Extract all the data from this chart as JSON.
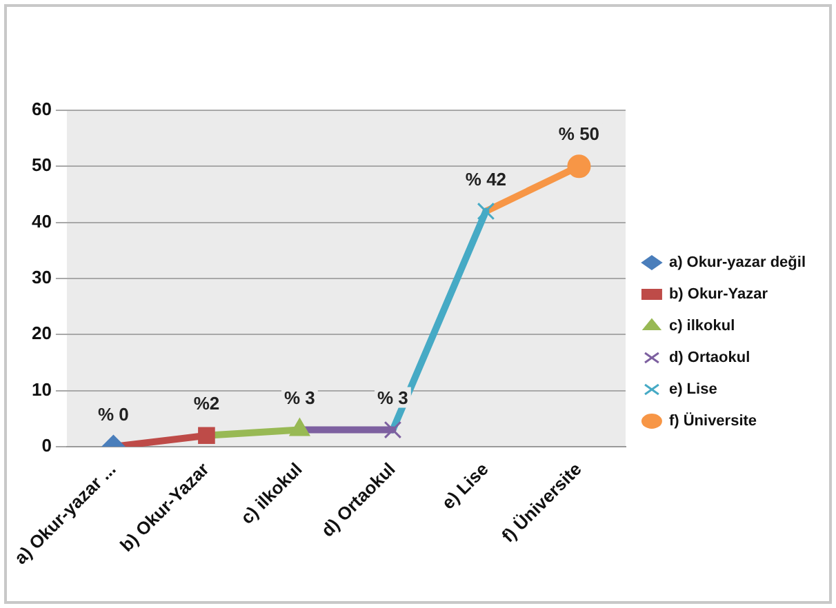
{
  "chart_data": {
    "type": "line",
    "categories": [
      "a) Okur-yazar ...",
      "b) Okur-Yazar",
      "c) ilkokul",
      "d) Ortaokul",
      "e) Lise",
      "f) Üniversite"
    ],
    "series": [
      {
        "name": "a) Okur-yazar değil",
        "color": "#4a7ebb",
        "marker": "diamond",
        "values": [
          0,
          null,
          null,
          null,
          null,
          null
        ],
        "value_labels": [
          "% 0",
          null,
          null,
          null,
          null,
          null
        ]
      },
      {
        "name": "b) Okur-Yazar",
        "color": "#be4b48",
        "marker": "square",
        "values": [
          0,
          2,
          null,
          null,
          null,
          null
        ],
        "value_labels": [
          null,
          "%2",
          null,
          null,
          null,
          null
        ]
      },
      {
        "name": "c) ilkokul",
        "color": "#98b954",
        "marker": "triangle",
        "values": [
          null,
          2,
          3,
          null,
          null,
          null
        ],
        "value_labels": [
          null,
          null,
          "% 3",
          null,
          null,
          null
        ]
      },
      {
        "name": "d) Ortaokul",
        "color": "#7d60a0",
        "marker": "cross",
        "values": [
          null,
          null,
          3,
          3,
          null,
          null
        ],
        "value_labels": [
          null,
          null,
          null,
          "% 3",
          null,
          null
        ]
      },
      {
        "name": "e) Lise",
        "color": "#46aac5",
        "marker": "cross",
        "values": [
          null,
          null,
          null,
          3,
          42,
          null
        ],
        "value_labels": [
          null,
          null,
          null,
          null,
          "% 42",
          null
        ]
      },
      {
        "name": "f) Üniversite",
        "color": "#f79646",
        "marker": "circle",
        "values": [
          null,
          null,
          null,
          null,
          42,
          50
        ],
        "value_labels": [
          null,
          null,
          null,
          null,
          null,
          "% 50"
        ]
      }
    ],
    "ylim": [
      0,
      60
    ],
    "yticks": [
      0,
      10,
      20,
      30,
      40,
      50,
      60
    ],
    "grid": "y",
    "legend": "right"
  }
}
